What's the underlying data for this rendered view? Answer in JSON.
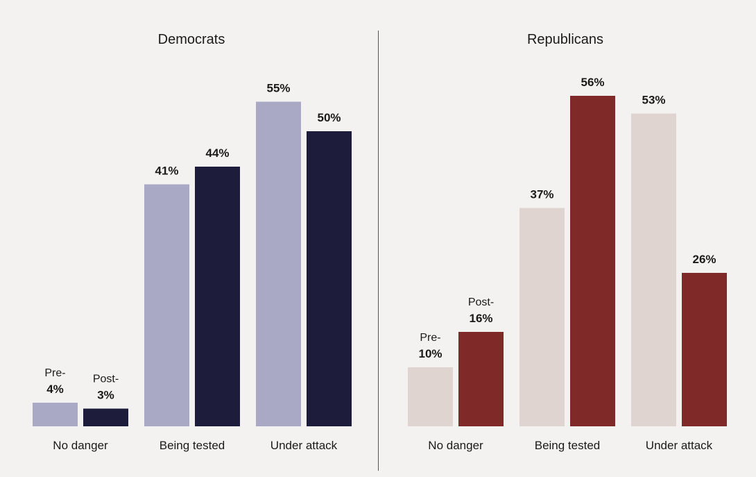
{
  "colors": {
    "background": "#f4f2f0",
    "divider": "#555555",
    "dem_pre": "#a9a8c5",
    "dem_post": "#1d1c3b",
    "rep_pre": "#dfd4cf",
    "rep_post": "#7f2a29"
  },
  "chart_data": [
    {
      "type": "bar",
      "title": "Democrats",
      "categories": [
        "No danger",
        "Being tested",
        "Under attack"
      ],
      "series": [
        {
          "name": "Pre-",
          "values": [
            4,
            41,
            55
          ],
          "color": "#a9a8c5"
        },
        {
          "name": "Post-",
          "values": [
            3,
            44,
            50
          ],
          "color": "#1d1c3b"
        }
      ],
      "value_suffix": "%",
      "ylim": [
        0,
        56
      ],
      "grid": false
    },
    {
      "type": "bar",
      "title": "Republicans",
      "categories": [
        "No danger",
        "Being tested",
        "Under attack"
      ],
      "series": [
        {
          "name": "Pre-",
          "values": [
            10,
            37,
            53
          ],
          "color": "#dfd4cf"
        },
        {
          "name": "Post-",
          "values": [
            16,
            56,
            26
          ],
          "color": "#7f2a29"
        }
      ],
      "value_suffix": "%",
      "ylim": [
        0,
        56
      ],
      "grid": false
    }
  ]
}
